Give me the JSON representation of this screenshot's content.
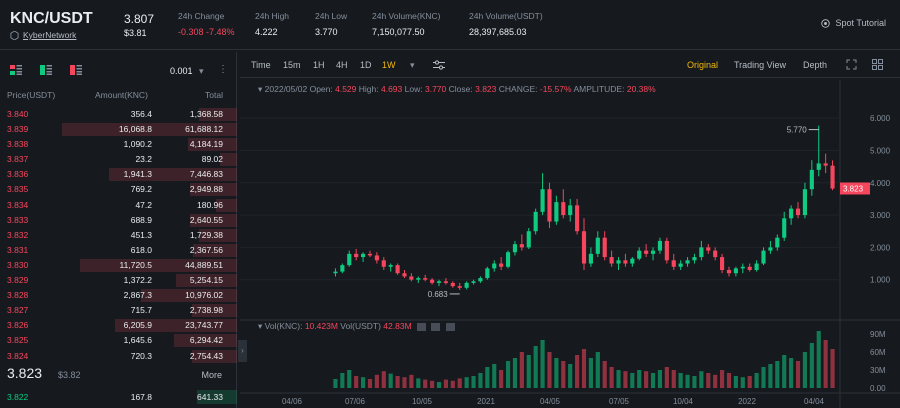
{
  "header": {
    "pair": "KNC/USDT",
    "project": "KyberNetwork",
    "price": "3.807",
    "price_usd": "$3.81",
    "stats": [
      {
        "label": "24h Change",
        "value": "-0.308 -7.48%",
        "color": "red"
      },
      {
        "label": "24h High",
        "value": "4.222"
      },
      {
        "label": "24h Low",
        "value": "3.770"
      },
      {
        "label": "24h Volume(KNC)",
        "value": "7,150,077.50"
      },
      {
        "label": "24h Volume(USDT)",
        "value": "28,397,685.03"
      }
    ],
    "spot_tutorial": "Spot Tutorial"
  },
  "orderbook": {
    "precision": "0.001",
    "columns": {
      "price": "Price(USDT)",
      "amount": "Amount(KNC)",
      "total": "Total"
    },
    "asks": [
      {
        "price": "3.840",
        "amount": "356.4",
        "total": "1,368.58",
        "depth": 0.22
      },
      {
        "price": "3.839",
        "amount": "16,068.8",
        "total": "61,688.12",
        "depth": 1.0
      },
      {
        "price": "3.838",
        "amount": "1,090.2",
        "total": "4,184.19",
        "depth": 0.28
      },
      {
        "price": "3.837",
        "amount": "23.2",
        "total": "89.02",
        "depth": 0.1
      },
      {
        "price": "3.836",
        "amount": "1,941.3",
        "total": "7,446.83",
        "depth": 0.73
      },
      {
        "price": "3.835",
        "amount": "769.2",
        "total": "2,949.88",
        "depth": 0.27
      },
      {
        "price": "3.834",
        "amount": "47.2",
        "total": "180.96",
        "depth": 0.12
      },
      {
        "price": "3.833",
        "amount": "688.9",
        "total": "2,640.55",
        "depth": 0.27
      },
      {
        "price": "3.832",
        "amount": "451.3",
        "total": "1,729.38",
        "depth": 0.22
      },
      {
        "price": "3.831",
        "amount": "618.0",
        "total": "2,367.56",
        "depth": 0.25
      },
      {
        "price": "3.830",
        "amount": "11,720.5",
        "total": "44,889.51",
        "depth": 0.9
      },
      {
        "price": "3.829",
        "amount": "1,372.2",
        "total": "5,254.15",
        "depth": 0.35
      },
      {
        "price": "3.828",
        "amount": "2,867.3",
        "total": "10,976.02",
        "depth": 0.55
      },
      {
        "price": "3.827",
        "amount": "715.7",
        "total": "2,738.98",
        "depth": 0.26
      },
      {
        "price": "3.826",
        "amount": "6,205.9",
        "total": "23,743.77",
        "depth": 0.7
      },
      {
        "price": "3.825",
        "amount": "1,645.6",
        "total": "6,294.42",
        "depth": 0.36
      },
      {
        "price": "3.824",
        "amount": "720.3",
        "total": "2,754.43",
        "depth": 0.26
      }
    ],
    "last_price": "3.823",
    "last_price_usd": "$3.82",
    "more": "More",
    "bid": {
      "price": "3.822",
      "amount": "167.8",
      "total": "641.33"
    }
  },
  "toolbar": {
    "intervals": [
      "Time",
      "15m",
      "1H",
      "4H",
      "1D",
      "1W"
    ],
    "active_interval": "1W",
    "views": [
      "Original",
      "Trading View",
      "Depth"
    ],
    "active_view": "Original"
  },
  "ohlc": {
    "date": "2022/05/02",
    "open_label": "Open:",
    "open": "4.529",
    "high_label": "High:",
    "high": "4.693",
    "low_label": "Low:",
    "low": "3.770",
    "close_label": "Close:",
    "close": "3.823",
    "change_label": "CHANGE:",
    "change": "-15.57%",
    "amp_label": "AMPLITUDE:",
    "amp": "20.38%"
  },
  "volume_info": {
    "knc_label": "Vol(KNC):",
    "knc": "10.423M",
    "usdt_label": "Vol(USDT)",
    "usdt": "42.83M"
  },
  "chart_data": {
    "type": "candlestick",
    "y_ticks": [
      "6.000",
      "5.000",
      "4.000",
      "3.000",
      "2.000",
      "1.000"
    ],
    "vol_ticks": [
      "90M",
      "60M",
      "30M",
      "0.00"
    ],
    "x_ticks": [
      "04/06",
      "07/06",
      "10/05",
      "2021",
      "04/05",
      "07/05",
      "10/04",
      "2022",
      "04/04"
    ],
    "ylim": [
      0,
      6.5
    ],
    "max_label": "5.770",
    "min_label": "0.683",
    "current_label": "3.823",
    "candles": [
      [
        1.2,
        1.35,
        1.1,
        1.25
      ],
      [
        1.25,
        1.5,
        1.2,
        1.45
      ],
      [
        1.45,
        1.9,
        1.4,
        1.8
      ],
      [
        1.8,
        1.95,
        1.6,
        1.7
      ],
      [
        1.7,
        1.85,
        1.55,
        1.8
      ],
      [
        1.8,
        1.9,
        1.7,
        1.75
      ],
      [
        1.75,
        1.85,
        1.5,
        1.6
      ],
      [
        1.6,
        1.7,
        1.3,
        1.4
      ],
      [
        1.4,
        1.5,
        1.25,
        1.45
      ],
      [
        1.45,
        1.5,
        1.15,
        1.2
      ],
      [
        1.2,
        1.3,
        1.05,
        1.1
      ],
      [
        1.1,
        1.2,
        0.95,
        1.0
      ],
      [
        1.0,
        1.1,
        0.9,
        1.05
      ],
      [
        1.05,
        1.15,
        0.95,
        1.0
      ],
      [
        1.0,
        1.05,
        0.85,
        0.9
      ],
      [
        0.9,
        1.0,
        0.8,
        0.95
      ],
      [
        0.95,
        1.05,
        0.85,
        0.9
      ],
      [
        0.9,
        0.95,
        0.75,
        0.8
      ],
      [
        0.8,
        0.9,
        0.683,
        0.75
      ],
      [
        0.75,
        0.95,
        0.7,
        0.9
      ],
      [
        0.9,
        1.0,
        0.85,
        0.95
      ],
      [
        0.95,
        1.1,
        0.9,
        1.05
      ],
      [
        1.05,
        1.4,
        1.0,
        1.35
      ],
      [
        1.35,
        1.6,
        1.25,
        1.5
      ],
      [
        1.5,
        1.7,
        1.3,
        1.4
      ],
      [
        1.4,
        1.9,
        1.35,
        1.85
      ],
      [
        1.85,
        2.2,
        1.75,
        2.1
      ],
      [
        2.1,
        2.4,
        1.9,
        2.0
      ],
      [
        2.0,
        2.6,
        1.95,
        2.5
      ],
      [
        2.5,
        3.2,
        2.4,
        3.1
      ],
      [
        3.1,
        4.3,
        3.0,
        3.8
      ],
      [
        3.8,
        4.0,
        2.6,
        2.8
      ],
      [
        2.8,
        3.6,
        2.7,
        3.4
      ],
      [
        3.4,
        3.8,
        2.9,
        3.0
      ],
      [
        3.0,
        3.5,
        2.8,
        3.3
      ],
      [
        3.3,
        3.5,
        2.4,
        2.5
      ],
      [
        2.5,
        2.9,
        1.3,
        1.5
      ],
      [
        1.5,
        2.0,
        1.4,
        1.8
      ],
      [
        1.8,
        2.5,
        1.7,
        2.3
      ],
      [
        2.3,
        2.5,
        1.6,
        1.7
      ],
      [
        1.7,
        1.9,
        1.4,
        1.5
      ],
      [
        1.5,
        1.7,
        1.3,
        1.6
      ],
      [
        1.6,
        1.8,
        1.4,
        1.5
      ],
      [
        1.5,
        1.7,
        1.4,
        1.65
      ],
      [
        1.65,
        2.0,
        1.6,
        1.9
      ],
      [
        1.9,
        2.1,
        1.7,
        1.8
      ],
      [
        1.8,
        2.0,
        1.6,
        1.9
      ],
      [
        1.9,
        2.3,
        1.8,
        2.2
      ],
      [
        2.2,
        2.3,
        1.5,
        1.6
      ],
      [
        1.6,
        1.8,
        1.3,
        1.4
      ],
      [
        1.4,
        1.6,
        1.3,
        1.5
      ],
      [
        1.5,
        1.7,
        1.4,
        1.6
      ],
      [
        1.6,
        1.8,
        1.5,
        1.7
      ],
      [
        1.7,
        2.2,
        1.6,
        2.0
      ],
      [
        2.0,
        2.1,
        1.8,
        1.9
      ],
      [
        1.9,
        2.0,
        1.6,
        1.7
      ],
      [
        1.7,
        1.8,
        1.2,
        1.3
      ],
      [
        1.3,
        1.4,
        1.1,
        1.2
      ],
      [
        1.2,
        1.4,
        1.1,
        1.35
      ],
      [
        1.35,
        1.5,
        1.2,
        1.4
      ],
      [
        1.4,
        1.5,
        1.25,
        1.3
      ],
      [
        1.3,
        1.6,
        1.25,
        1.5
      ],
      [
        1.5,
        2.0,
        1.45,
        1.9
      ],
      [
        1.9,
        2.2,
        1.8,
        2.0
      ],
      [
        2.0,
        2.4,
        1.9,
        2.3
      ],
      [
        2.3,
        3.1,
        2.2,
        2.9
      ],
      [
        2.9,
        3.3,
        2.7,
        3.2
      ],
      [
        3.2,
        3.4,
        2.9,
        3.0
      ],
      [
        3.0,
        4.0,
        2.9,
        3.8
      ],
      [
        3.8,
        4.7,
        3.6,
        4.4
      ],
      [
        4.4,
        5.77,
        4.2,
        4.6
      ],
      [
        4.6,
        4.9,
        4.3,
        4.53
      ],
      [
        4.53,
        4.693,
        3.77,
        3.823
      ]
    ],
    "volumes": [
      15,
      25,
      30,
      20,
      18,
      15,
      22,
      28,
      24,
      20,
      18,
      22,
      16,
      14,
      12,
      10,
      14,
      12,
      16,
      18,
      20,
      25,
      35,
      40,
      30,
      45,
      50,
      60,
      55,
      70,
      80,
      60,
      50,
      45,
      40,
      55,
      65,
      50,
      60,
      45,
      35,
      30,
      28,
      25,
      30,
      28,
      25,
      30,
      35,
      30,
      25,
      22,
      20,
      28,
      25,
      22,
      30,
      25,
      20,
      18,
      20,
      25,
      35,
      40,
      45,
      55,
      50,
      45,
      60,
      75,
      95,
      80,
      65
    ]
  }
}
